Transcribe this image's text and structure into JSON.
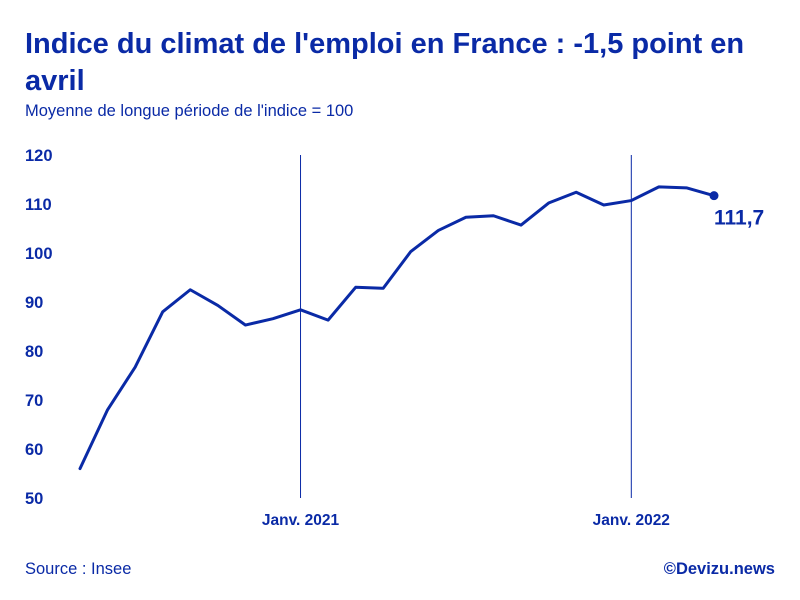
{
  "header": {
    "title": "Indice du climat de l'emploi en France : -1,5 point en avril",
    "subtitle": "Moyenne de longue période de l'indice = 100"
  },
  "footer": {
    "source": "Source : Insee",
    "brand": "©Devizu.news"
  },
  "colors": {
    "line": "#0a2aa6",
    "text": "#0a2aa6",
    "marker_line": "#0a2aa6"
  },
  "chart_data": {
    "type": "line",
    "title": "Indice du climat de l'emploi en France : -1,5 point en avril",
    "subtitle": "Moyenne de longue période de l'indice = 100",
    "x": [
      "2020-05",
      "2020-06",
      "2020-07",
      "2020-08",
      "2020-09",
      "2020-10",
      "2020-11",
      "2020-12",
      "2021-01",
      "2021-02",
      "2021-03",
      "2021-04",
      "2021-05",
      "2021-06",
      "2021-07",
      "2021-08",
      "2021-09",
      "2021-10",
      "2021-11",
      "2021-12",
      "2022-01",
      "2022-02",
      "2022-03",
      "2022-04"
    ],
    "series": [
      {
        "values": [
          56.0,
          68.0,
          76.7,
          88.0,
          92.5,
          89.3,
          85.3,
          86.6,
          88.4,
          86.3,
          93.0,
          92.8,
          100.3,
          104.6,
          107.3,
          107.6,
          105.7,
          110.2,
          112.4,
          109.8,
          110.7,
          113.5,
          113.3,
          111.7
        ]
      }
    ],
    "ylim": [
      50,
      120
    ],
    "yticks": [
      "50",
      "60",
      "70",
      "80",
      "90",
      "100",
      "110",
      "120"
    ],
    "xtick_labels": [
      {
        "label": "Janv. 2021",
        "x": "2021-01"
      },
      {
        "label": "Janv. 2022",
        "x": "2022-01"
      }
    ],
    "last_value_label": "111,7",
    "grid": false
  }
}
